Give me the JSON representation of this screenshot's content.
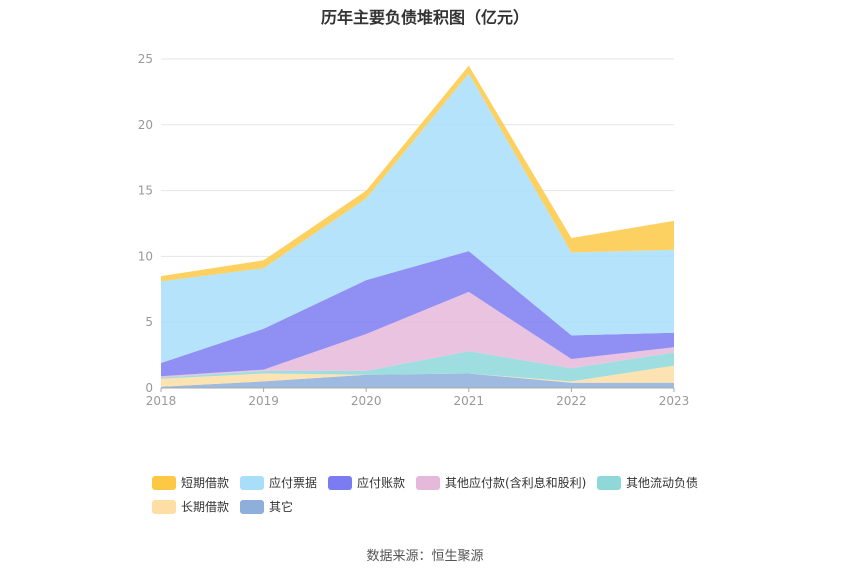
{
  "chart_data": {
    "type": "area",
    "title": "历年主要负债堆积图（亿元）",
    "xlabel": "",
    "ylabel": "",
    "categories": [
      "2018",
      "2019",
      "2020",
      "2021",
      "2022",
      "2023"
    ],
    "yticks": [
      "0",
      "5",
      "10",
      "15",
      "20",
      "25"
    ],
    "ylim": [
      0,
      25
    ],
    "stacked": true,
    "grid": true,
    "legend_position": "bottom",
    "series": [
      {
        "name": "其它",
        "color": "#8eaedc",
        "values": [
          0.1,
          0.5,
          1.0,
          1.1,
          0.4,
          0.4
        ]
      },
      {
        "name": "长期借款",
        "color": "#fedea4",
        "values": [
          0.6,
          0.6,
          0.0,
          0.0,
          0.1,
          1.3
        ]
      },
      {
        "name": "其他流动负债",
        "color": "#8ed8da",
        "values": [
          0.1,
          0.2,
          0.3,
          1.7,
          1.0,
          1.0
        ]
      },
      {
        "name": "其他应付款(含利息和股利)",
        "color": "#e6b8da",
        "values": [
          0.1,
          0.1,
          2.8,
          4.5,
          0.7,
          0.4
        ]
      },
      {
        "name": "应付账款",
        "color": "#7c7cf2",
        "values": [
          1.0,
          3.1,
          4.1,
          3.1,
          1.8,
          1.1
        ]
      },
      {
        "name": "应付票据",
        "color": "#a8defa",
        "values": [
          6.2,
          4.6,
          6.2,
          13.5,
          6.3,
          6.3
        ]
      },
      {
        "name": "短期借款",
        "color": "#fdc945",
        "values": [
          0.4,
          0.6,
          0.6,
          0.6,
          1.1,
          2.2
        ]
      }
    ]
  },
  "legend": [
    {
      "label": "短期借款",
      "color": "#fdc945"
    },
    {
      "label": "应付票据",
      "color": "#a8defa"
    },
    {
      "label": "应付账款",
      "color": "#7c7cf2"
    },
    {
      "label": "其他应付款(含利息和股利)",
      "color": "#e6b8da"
    },
    {
      "label": "其他流动负债",
      "color": "#8ed8da"
    },
    {
      "label": "长期借款",
      "color": "#fedea4"
    },
    {
      "label": "其它",
      "color": "#8eaedc"
    }
  ],
  "source": "数据来源：恒生聚源"
}
